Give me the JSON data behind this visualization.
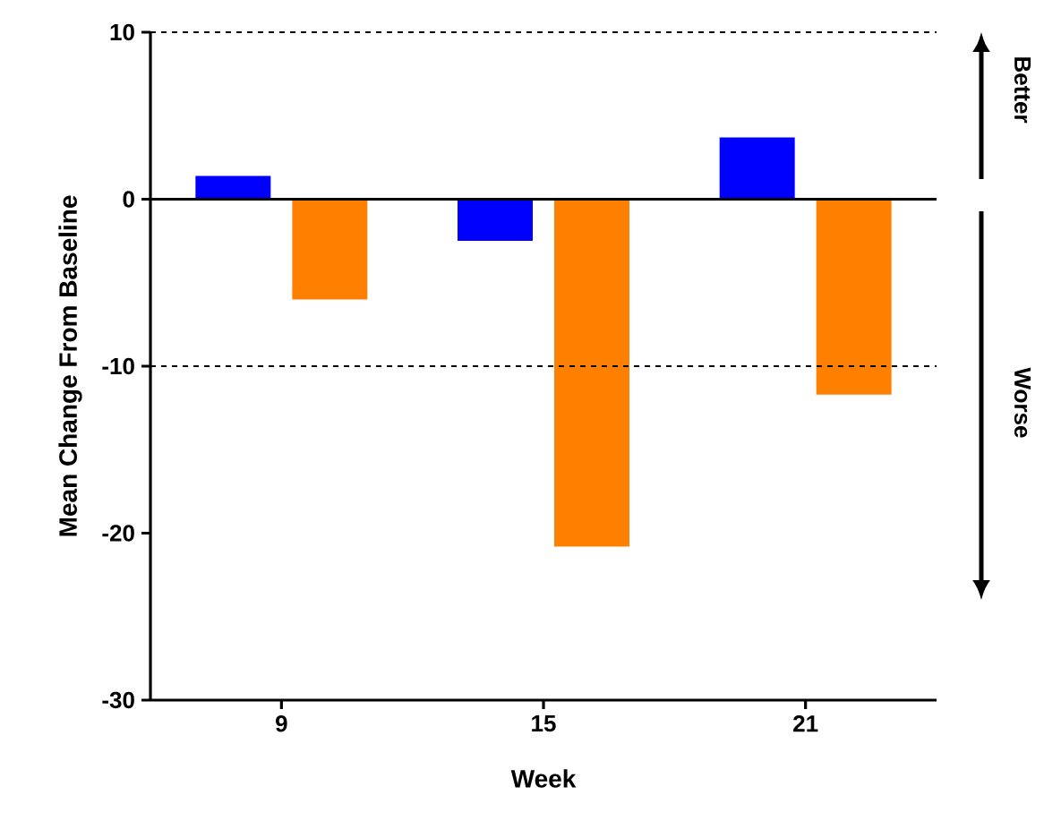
{
  "chart_data": {
    "type": "bar",
    "xlabel": "Week",
    "ylabel": "Mean Change From Baseline",
    "categories": [
      "9",
      "15",
      "21"
    ],
    "series": [
      {
        "color": "#0000ff",
        "values": [
          1.4,
          -2.5,
          3.7
        ]
      },
      {
        "color": "#ff8000",
        "values": [
          -6.0,
          -20.8,
          -11.7
        ]
      }
    ],
    "ylim": [
      -30,
      10
    ],
    "yticks": [
      -30,
      -20,
      -10,
      0,
      10
    ],
    "ref_lines": [
      {
        "axis": "y",
        "value": 10,
        "line_style": "dashed"
      },
      {
        "axis": "y",
        "value": 0,
        "line_style": "solid"
      },
      {
        "axis": "y",
        "value": -10,
        "line_style": "dashed"
      }
    ],
    "annotations": [
      "Better",
      "Worse"
    ],
    "grid": false
  }
}
